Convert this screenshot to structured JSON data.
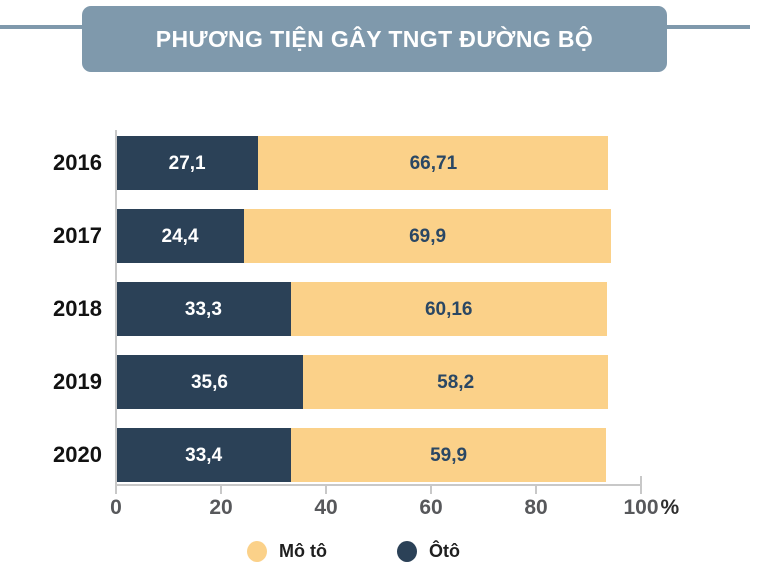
{
  "chart_data": {
    "type": "bar",
    "orientation": "horizontal",
    "stacked": true,
    "title": "PHƯƠNG TIỆN GÂY TNGT ĐƯỜNG BỘ",
    "categories": [
      "2016",
      "2017",
      "2018",
      "2019",
      "2020"
    ],
    "series": [
      {
        "name": "Ôtô",
        "color": "#2b4157",
        "label_color": "#ffffff",
        "values": [
          27.1,
          24.4,
          33.3,
          35.6,
          33.4
        ],
        "labels": [
          "27,1",
          "24,4",
          "33,3",
          "35,6",
          "33,4"
        ]
      },
      {
        "name": "Mô tô",
        "color": "#fbd189",
        "label_color": "#2a4764",
        "values": [
          66.71,
          69.9,
          60.16,
          58.2,
          59.9
        ],
        "labels": [
          "66,71",
          "69,9",
          "60,16",
          "58,2",
          "59,9"
        ]
      }
    ],
    "xlim": [
      0,
      100
    ],
    "x_ticks": [
      0,
      20,
      40,
      60,
      80,
      100
    ],
    "x_tick_labels": [
      "0",
      "20",
      "40",
      "60",
      "80",
      "100"
    ],
    "x_suffix": "%",
    "grid": false,
    "legend_position": "bottom",
    "legend": [
      {
        "label": "Mô tô",
        "color": "#fbd189"
      },
      {
        "label": "Ôtô",
        "color": "#2b4157"
      }
    ],
    "colors": {
      "banner": "#7f99ac",
      "axis": "#c8c8c8",
      "tick_text": "#57585b"
    }
  }
}
